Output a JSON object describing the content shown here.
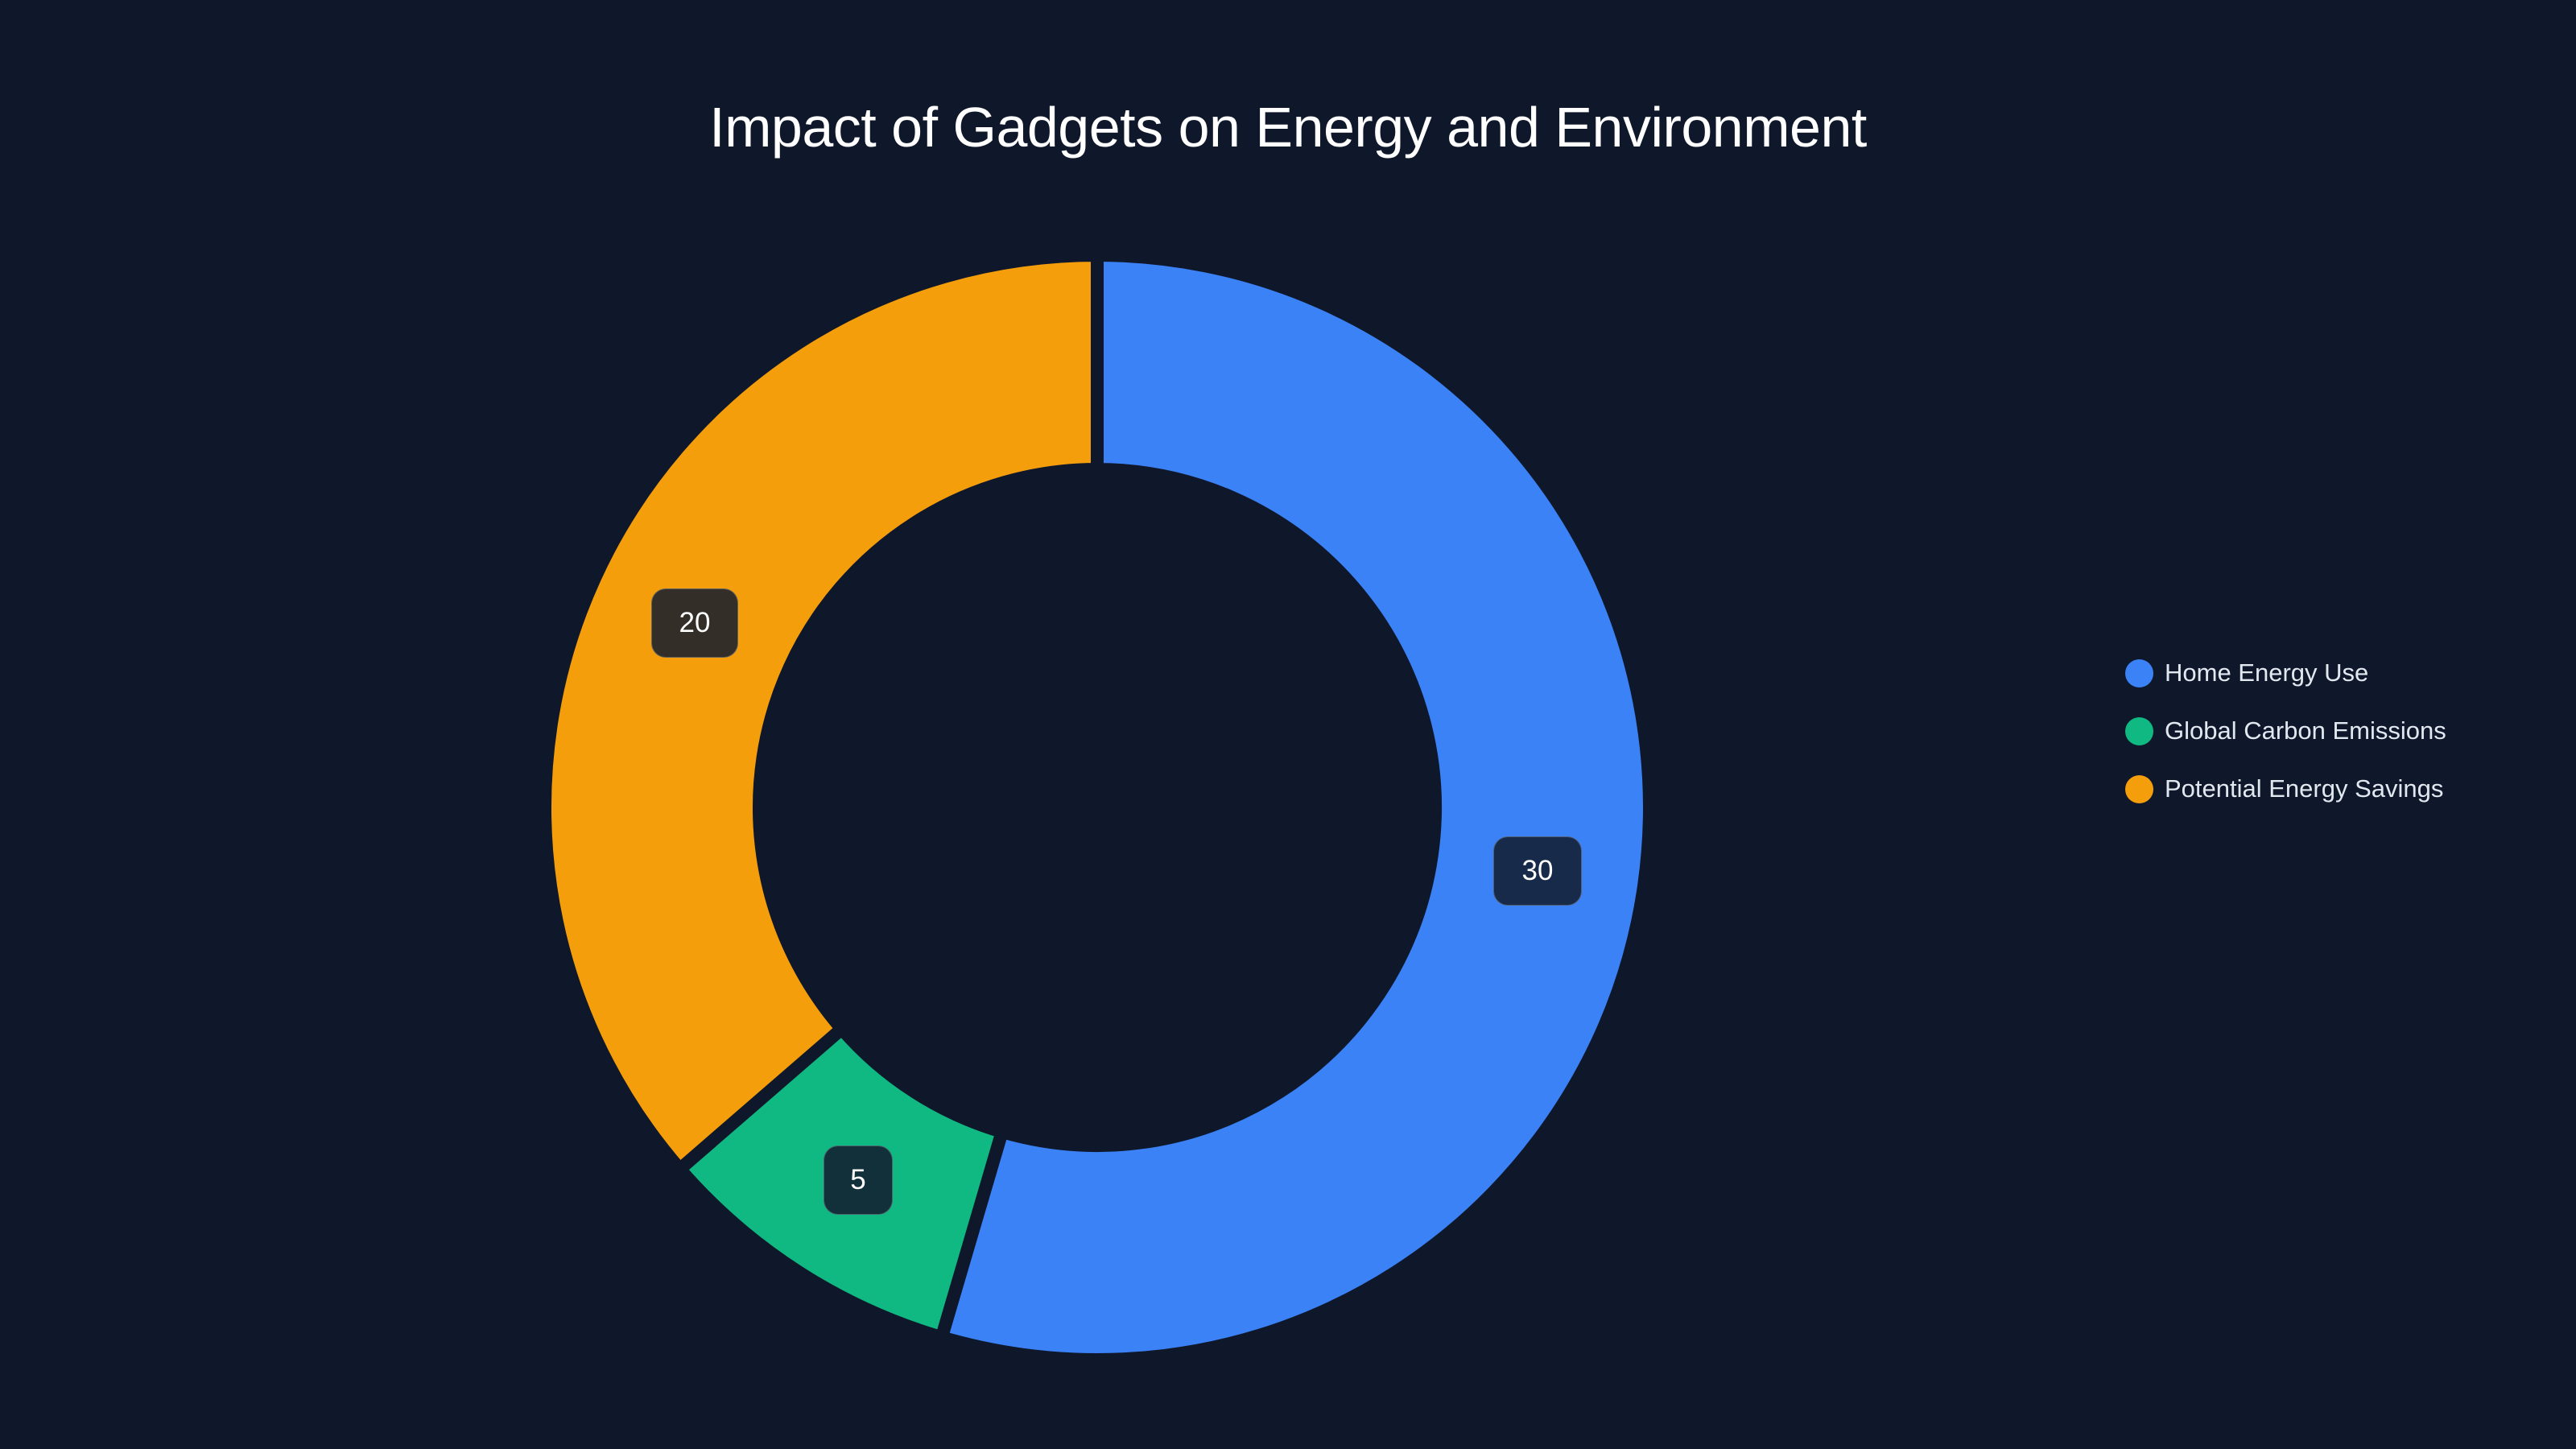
{
  "chart_data": {
    "type": "pie",
    "variant": "donut",
    "title": "Impact of Gadgets on Energy and Environment",
    "categories": [
      "Home Energy Use",
      "Global Carbon Emissions",
      "Potential Energy Savings"
    ],
    "values": [
      30,
      5,
      20
    ],
    "colors": [
      "#3b82f6",
      "#10b981",
      "#f59e0b"
    ],
    "label_bg_colors": [
      "#172a4a",
      "#11303a",
      "#332e28"
    ],
    "legend_position": "right",
    "start_angle": "top, clockwise"
  },
  "title": "Impact of Gadgets on Energy and Environment",
  "legend": {
    "items": [
      {
        "label": "Home Energy Use",
        "color": "#3b82f6"
      },
      {
        "label": "Global Carbon Emissions",
        "color": "#10b981"
      },
      {
        "label": "Potential Energy Savings",
        "color": "#f59e0b"
      }
    ]
  },
  "labels": {
    "home": "30",
    "carbon": "5",
    "savings": "20"
  }
}
